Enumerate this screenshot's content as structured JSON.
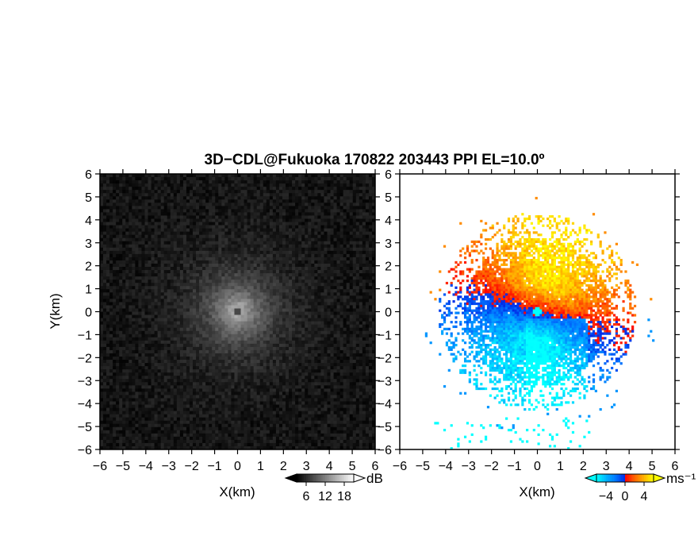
{
  "title": "3D−CDL@Fukuoka 170822 203443 PPI EL=10.0º",
  "chart_data": [
    {
      "type": "heatmap",
      "panel": "left",
      "quantity": "signal intensity (grayscale)",
      "xlabel": "X(km)",
      "ylabel": "Y(km)",
      "xlim": [
        -6,
        6
      ],
      "ylim": [
        -6,
        6
      ],
      "xticks": [
        "−6",
        "−5",
        "−4",
        "−3",
        "−2",
        "−1",
        "0",
        "1",
        "2",
        "3",
        "4",
        "5",
        "6"
      ],
      "yticks": [
        "6",
        "5",
        "4",
        "3",
        "2",
        "1",
        "0",
        "−1",
        "−2",
        "−3",
        "−4",
        "−5",
        "−6"
      ],
      "pattern": "radial: bright (~18 dB) near origin decaying to dark (~6 dB) at edges, dark blind spot at origin",
      "colorbar": {
        "unit": "dB",
        "ticks": [
          "6",
          "12",
          "18"
        ],
        "range": [
          3,
          21
        ],
        "colors": [
          "#000000",
          "#ffffff"
        ],
        "extend": "both"
      }
    },
    {
      "type": "heatmap",
      "panel": "right",
      "quantity": "Doppler velocity",
      "xlabel": "X(km)",
      "ylabel": "",
      "xlim": [
        -6,
        6
      ],
      "ylim": [
        -6,
        6
      ],
      "xticks": [
        "−6",
        "−5",
        "−4",
        "−3",
        "−2",
        "−1",
        "0",
        "1",
        "2",
        "3",
        "4",
        "5",
        "6"
      ],
      "yticks": [
        "6",
        "5",
        "4",
        "3",
        "2",
        "1",
        "0",
        "−1",
        "−2",
        "−3",
        "−4",
        "−5",
        "−6"
      ],
      "pattern": "positive velocities (red-orange-yellow) in north/northwest sector, negative velocities (blue) in south/southeast sector within ~4 km; sparse cyan returns near y=-5 to -6",
      "colorbar": {
        "unit": "ms⁻¹",
        "ticks": [
          "−4",
          "0",
          "4"
        ],
        "range": [
          -6,
          6
        ],
        "colors": [
          "#00ffff",
          "#0090ff",
          "#0020ff",
          "#ff0000",
          "#ff8000",
          "#ffff00"
        ],
        "extend": "both"
      }
    }
  ]
}
